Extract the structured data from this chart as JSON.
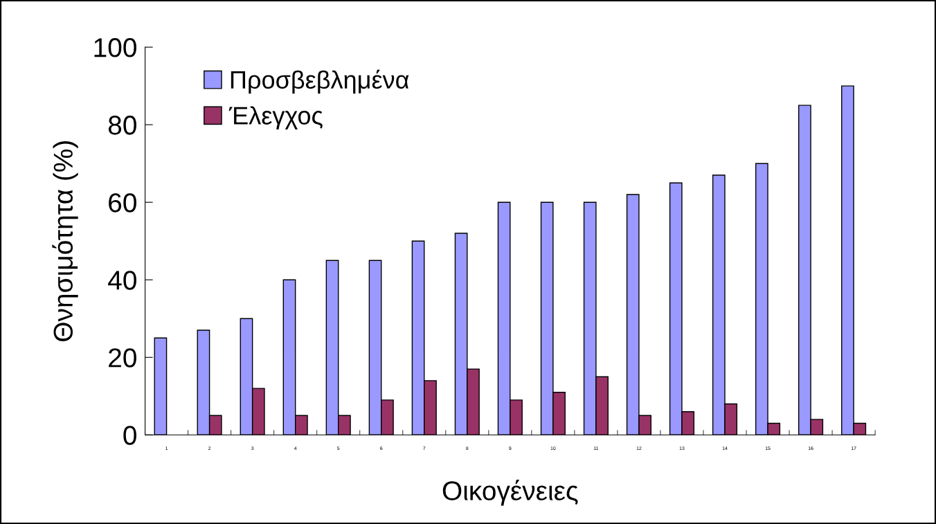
{
  "chart_data": {
    "type": "bar",
    "xlabel": "Οικογένειες",
    "ylabel": "Θνησιμότητα (%)",
    "categories": [
      "1",
      "2",
      "3",
      "4",
      "5",
      "6",
      "7",
      "8",
      "9",
      "10",
      "11",
      "12",
      "13",
      "14",
      "15",
      "16",
      "17"
    ],
    "series": [
      {
        "name": "Προσβεβλημένα",
        "color": "#9999ff",
        "values": [
          25,
          27,
          30,
          40,
          45,
          45,
          50,
          52,
          60,
          60,
          60,
          62,
          65,
          67,
          70,
          85,
          90
        ]
      },
      {
        "name": "Έλεγχος",
        "color": "#993366",
        "values": [
          null,
          5,
          12,
          5,
          5,
          9,
          14,
          17,
          9,
          11,
          15,
          5,
          6,
          8,
          3,
          4,
          3
        ]
      }
    ],
    "ylim": [
      0,
      100
    ],
    "yticks": [
      0,
      20,
      40,
      60,
      80,
      100
    ],
    "grid": false,
    "legend": "top left"
  }
}
